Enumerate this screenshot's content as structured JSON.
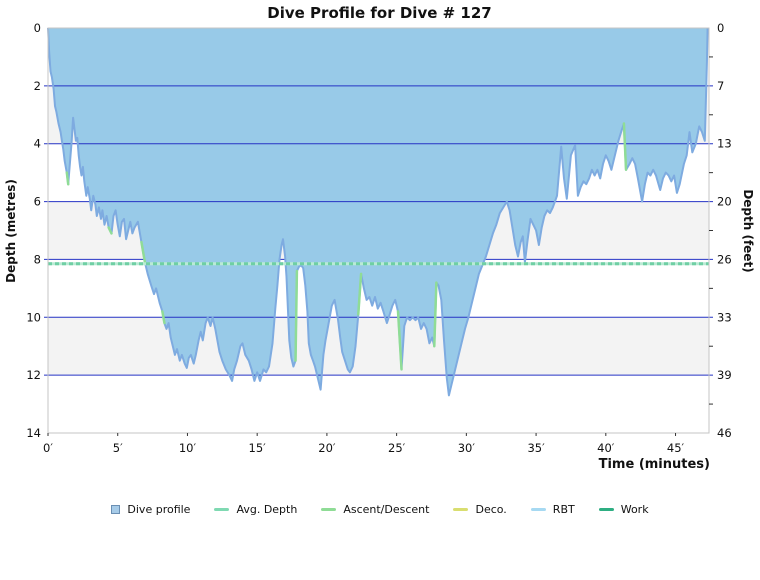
{
  "title": "Dive Profile for Dive # 127",
  "axes": {
    "y_left": {
      "label": "Depth (metres)",
      "tick_values": [
        0,
        2,
        4,
        6,
        8,
        10,
        12,
        14
      ]
    },
    "y_right": {
      "label": "Depth (feet)",
      "tick_labels": [
        "0",
        "7",
        "13",
        "20",
        "26",
        "33",
        "39",
        "46"
      ],
      "minor_tick_metres": [
        1,
        3,
        5,
        7,
        9,
        11,
        13
      ]
    },
    "x": {
      "label": "Time (minutes)",
      "tick_labels": [
        "0′",
        "5′",
        "10′",
        "15′",
        "20′",
        "25′",
        "30′",
        "35′",
        "40′",
        "45′"
      ],
      "tick_minutes": [
        0,
        5,
        10,
        15,
        20,
        25,
        30,
        35,
        40,
        45
      ]
    }
  },
  "legend": [
    {
      "label": "Dive profile",
      "type": "square",
      "color": "#A6CBE8"
    },
    {
      "label": "Avg. Depth",
      "type": "line",
      "color": "#7FD9B2"
    },
    {
      "label": "Ascent/Descent",
      "type": "line",
      "color": "#8FDC96"
    },
    {
      "label": "Deco.",
      "type": "line",
      "color": "#D9DE70"
    },
    {
      "label": "RBT",
      "type": "line",
      "color": "#A6D9F2"
    },
    {
      "label": "Work",
      "type": "line",
      "color": "#2EAE82"
    }
  ],
  "colors": {
    "profile_fill": "#98CAE8",
    "profile_stroke": "#7EABE0",
    "gridline": "#2533C4",
    "band_gray": "#F3F3F3",
    "avg_line": "#6FCFA4",
    "avg_line_light": "#B9EBD4",
    "ascent_green": "#8FDC96",
    "plot_border": "#C4C4C4",
    "tick_dark": "#333333",
    "text": "#111111"
  },
  "chart_data": {
    "type": "area",
    "title": "Dive Profile for Dive # 127",
    "xlabel": "Time (minutes)",
    "ylabel": "Depth (metres)",
    "ylabel_right": "Depth (feet)",
    "xlim": [
      0,
      47.4
    ],
    "ylim": [
      0,
      14
    ],
    "y_inverted": true,
    "grid_interval_m": 2,
    "gray_bands_m": [
      [
        2,
        4
      ],
      [
        6,
        8
      ],
      [
        10,
        12
      ]
    ],
    "avg_depth_m": 8.15,
    "max_depth_m": 12.7,
    "series": [
      {
        "name": "Dive profile",
        "points": [
          [
            0,
            0
          ],
          [
            0.08,
            0.8
          ],
          [
            0.18,
            1.5
          ],
          [
            0.28,
            1.7
          ],
          [
            0.4,
            2.1
          ],
          [
            0.5,
            2.7
          ],
          [
            0.6,
            2.9
          ],
          [
            0.75,
            3.3
          ],
          [
            0.9,
            3.6
          ],
          [
            1.0,
            3.9
          ],
          [
            1.1,
            4.2
          ],
          [
            1.2,
            4.6
          ],
          [
            1.35,
            5.0
          ],
          [
            1.45,
            5.4
          ],
          [
            1.55,
            4.8
          ],
          [
            1.7,
            3.9
          ],
          [
            1.8,
            3.1
          ],
          [
            1.9,
            3.5
          ],
          [
            2.0,
            3.9
          ],
          [
            2.1,
            3.8
          ],
          [
            2.2,
            4.4
          ],
          [
            2.3,
            4.8
          ],
          [
            2.4,
            5.1
          ],
          [
            2.5,
            4.8
          ],
          [
            2.6,
            5.3
          ],
          [
            2.75,
            5.8
          ],
          [
            2.85,
            5.5
          ],
          [
            3.0,
            5.9
          ],
          [
            3.1,
            6.3
          ],
          [
            3.25,
            5.8
          ],
          [
            3.4,
            6.1
          ],
          [
            3.5,
            6.5
          ],
          [
            3.65,
            6.2
          ],
          [
            3.8,
            6.6
          ],
          [
            3.9,
            6.3
          ],
          [
            4.05,
            6.8
          ],
          [
            4.2,
            6.5
          ],
          [
            4.35,
            6.9
          ],
          [
            4.55,
            7.1
          ],
          [
            4.7,
            6.5
          ],
          [
            4.85,
            6.3
          ],
          [
            5.0,
            6.8
          ],
          [
            5.15,
            7.2
          ],
          [
            5.3,
            6.7
          ],
          [
            5.45,
            6.6
          ],
          [
            5.6,
            7.3
          ],
          [
            5.75,
            7.0
          ],
          [
            5.9,
            6.7
          ],
          [
            6.05,
            7.1
          ],
          [
            6.2,
            6.9
          ],
          [
            6.45,
            6.7
          ],
          [
            6.7,
            7.4
          ],
          [
            6.95,
            8.1
          ],
          [
            7.15,
            8.5
          ],
          [
            7.4,
            8.9
          ],
          [
            7.6,
            9.2
          ],
          [
            7.75,
            9.0
          ],
          [
            8.0,
            9.5
          ],
          [
            8.2,
            9.8
          ],
          [
            8.35,
            10.2
          ],
          [
            8.5,
            10.4
          ],
          [
            8.65,
            10.2
          ],
          [
            8.8,
            10.7
          ],
          [
            8.95,
            11.0
          ],
          [
            9.1,
            11.3
          ],
          [
            9.25,
            11.1
          ],
          [
            9.45,
            11.5
          ],
          [
            9.6,
            11.3
          ],
          [
            9.8,
            11.6
          ],
          [
            9.95,
            11.75
          ],
          [
            10.1,
            11.4
          ],
          [
            10.25,
            11.3
          ],
          [
            10.45,
            11.6
          ],
          [
            10.6,
            11.3
          ],
          [
            10.8,
            10.8
          ],
          [
            10.95,
            10.5
          ],
          [
            11.1,
            10.8
          ],
          [
            11.3,
            10.2
          ],
          [
            11.45,
            10.0
          ],
          [
            11.65,
            10.3
          ],
          [
            11.8,
            10.0
          ],
          [
            12.0,
            10.4
          ],
          [
            12.3,
            11.2
          ],
          [
            12.5,
            11.5
          ],
          [
            12.75,
            11.8
          ],
          [
            13.0,
            12.0
          ],
          [
            13.2,
            12.2
          ],
          [
            13.35,
            11.8
          ],
          [
            13.55,
            11.5
          ],
          [
            13.8,
            11.0
          ],
          [
            13.95,
            10.9
          ],
          [
            14.15,
            11.3
          ],
          [
            14.4,
            11.5
          ],
          [
            14.6,
            11.8
          ],
          [
            14.8,
            12.2
          ],
          [
            15.0,
            11.9
          ],
          [
            15.2,
            12.2
          ],
          [
            15.45,
            11.8
          ],
          [
            15.65,
            11.9
          ],
          [
            15.85,
            11.7
          ],
          [
            16.1,
            10.9
          ],
          [
            16.3,
            9.7
          ],
          [
            16.45,
            8.9
          ],
          [
            16.6,
            8.0
          ],
          [
            16.75,
            7.5
          ],
          [
            16.85,
            7.3
          ],
          [
            17.0,
            7.9
          ],
          [
            17.1,
            8.6
          ],
          [
            17.2,
            9.7
          ],
          [
            17.3,
            10.8
          ],
          [
            17.45,
            11.4
          ],
          [
            17.6,
            11.7
          ],
          [
            17.75,
            11.5
          ],
          [
            17.85,
            8.4
          ],
          [
            18.0,
            8.25
          ],
          [
            18.15,
            8.2
          ],
          [
            18.3,
            8.3
          ],
          [
            18.45,
            8.9
          ],
          [
            18.6,
            9.8
          ],
          [
            18.7,
            10.9
          ],
          [
            18.85,
            11.3
          ],
          [
            19.0,
            11.5
          ],
          [
            19.15,
            11.7
          ],
          [
            19.3,
            12.0
          ],
          [
            19.55,
            12.5
          ],
          [
            19.75,
            11.3
          ],
          [
            19.9,
            10.8
          ],
          [
            20.05,
            10.4
          ],
          [
            20.2,
            10.0
          ],
          [
            20.35,
            9.6
          ],
          [
            20.55,
            9.4
          ],
          [
            20.8,
            10.1
          ],
          [
            20.95,
            10.7
          ],
          [
            21.1,
            11.2
          ],
          [
            21.3,
            11.5
          ],
          [
            21.5,
            11.8
          ],
          [
            21.65,
            11.9
          ],
          [
            21.85,
            11.7
          ],
          [
            22.05,
            11.0
          ],
          [
            22.25,
            9.9
          ],
          [
            22.45,
            8.5
          ],
          [
            22.65,
            9.0
          ],
          [
            22.85,
            9.4
          ],
          [
            23.05,
            9.3
          ],
          [
            23.25,
            9.6
          ],
          [
            23.45,
            9.3
          ],
          [
            23.65,
            9.7
          ],
          [
            23.85,
            9.5
          ],
          [
            24.05,
            9.8
          ],
          [
            24.3,
            10.2
          ],
          [
            24.5,
            9.9
          ],
          [
            24.7,
            9.6
          ],
          [
            24.9,
            9.4
          ],
          [
            25.1,
            9.8
          ],
          [
            25.35,
            11.8
          ],
          [
            25.55,
            10.3
          ],
          [
            25.75,
            10.0
          ],
          [
            25.95,
            10.1
          ],
          [
            26.15,
            10.0
          ],
          [
            26.35,
            10.1
          ],
          [
            26.55,
            10.0
          ],
          [
            26.75,
            10.4
          ],
          [
            26.95,
            10.2
          ],
          [
            27.15,
            10.4
          ],
          [
            27.35,
            10.9
          ],
          [
            27.55,
            10.7
          ],
          [
            27.7,
            11.0
          ],
          [
            27.85,
            8.8
          ],
          [
            28.0,
            8.9
          ],
          [
            28.2,
            9.4
          ],
          [
            28.4,
            10.8
          ],
          [
            28.6,
            12.1
          ],
          [
            28.75,
            12.7
          ],
          [
            28.95,
            12.3
          ],
          [
            29.15,
            11.9
          ],
          [
            29.4,
            11.4
          ],
          [
            29.65,
            10.9
          ],
          [
            29.9,
            10.4
          ],
          [
            30.15,
            10.0
          ],
          [
            30.4,
            9.5
          ],
          [
            30.65,
            9.0
          ],
          [
            30.9,
            8.5
          ],
          [
            31.15,
            8.2
          ],
          [
            31.4,
            7.9
          ],
          [
            31.65,
            7.5
          ],
          [
            31.9,
            7.1
          ],
          [
            32.15,
            6.8
          ],
          [
            32.4,
            6.4
          ],
          [
            32.65,
            6.2
          ],
          [
            32.9,
            6.0
          ],
          [
            33.1,
            6.3
          ],
          [
            33.3,
            6.9
          ],
          [
            33.5,
            7.5
          ],
          [
            33.7,
            7.9
          ],
          [
            33.9,
            7.4
          ],
          [
            34.05,
            7.2
          ],
          [
            34.2,
            8.1
          ],
          [
            34.4,
            7.3
          ],
          [
            34.6,
            6.6
          ],
          [
            34.8,
            6.8
          ],
          [
            35.0,
            7.0
          ],
          [
            35.2,
            7.5
          ],
          [
            35.4,
            6.9
          ],
          [
            35.6,
            6.5
          ],
          [
            35.8,
            6.3
          ],
          [
            36.0,
            6.4
          ],
          [
            36.2,
            6.2
          ],
          [
            36.5,
            5.8
          ],
          [
            36.8,
            4.1
          ],
          [
            37.0,
            5.2
          ],
          [
            37.2,
            5.9
          ],
          [
            37.5,
            4.4
          ],
          [
            37.8,
            4.05
          ],
          [
            38.0,
            5.8
          ],
          [
            38.2,
            5.5
          ],
          [
            38.4,
            5.3
          ],
          [
            38.6,
            5.4
          ],
          [
            38.8,
            5.2
          ],
          [
            39.0,
            4.9
          ],
          [
            39.2,
            5.1
          ],
          [
            39.4,
            4.9
          ],
          [
            39.6,
            5.2
          ],
          [
            39.8,
            4.7
          ],
          [
            40.0,
            4.4
          ],
          [
            40.2,
            4.6
          ],
          [
            40.4,
            4.9
          ],
          [
            40.6,
            4.5
          ],
          [
            40.9,
            3.9
          ],
          [
            41.1,
            3.6
          ],
          [
            41.3,
            3.3
          ],
          [
            41.45,
            4.9
          ],
          [
            41.7,
            4.7
          ],
          [
            41.9,
            4.5
          ],
          [
            42.1,
            4.7
          ],
          [
            42.3,
            5.2
          ],
          [
            42.6,
            6.0
          ],
          [
            42.8,
            5.4
          ],
          [
            43.0,
            5.0
          ],
          [
            43.2,
            5.1
          ],
          [
            43.4,
            4.9
          ],
          [
            43.6,
            5.1
          ],
          [
            43.9,
            5.6
          ],
          [
            44.1,
            5.2
          ],
          [
            44.3,
            5.0
          ],
          [
            44.5,
            5.1
          ],
          [
            44.7,
            5.3
          ],
          [
            44.9,
            5.1
          ],
          [
            45.1,
            5.7
          ],
          [
            45.3,
            5.4
          ],
          [
            45.6,
            4.7
          ],
          [
            45.8,
            4.4
          ],
          [
            46.0,
            3.6
          ],
          [
            46.2,
            4.3
          ],
          [
            46.45,
            4.0
          ],
          [
            46.7,
            3.4
          ],
          [
            46.9,
            3.6
          ],
          [
            47.1,
            3.9
          ],
          [
            47.15,
            3.0
          ],
          [
            47.25,
            1.2
          ],
          [
            47.3,
            0
          ]
        ]
      }
    ],
    "ascent_descent_segments": [
      [
        1.35,
        5.0,
        1.45,
        5.4
      ],
      [
        4.35,
        6.9,
        4.55,
        7.1
      ],
      [
        6.7,
        7.4,
        6.95,
        8.1
      ],
      [
        8.2,
        9.8,
        8.35,
        10.2
      ],
      [
        17.75,
        11.5,
        17.85,
        8.4
      ],
      [
        22.25,
        9.9,
        22.45,
        8.5
      ],
      [
        25.1,
        9.8,
        25.35,
        11.8
      ],
      [
        27.7,
        11.0,
        27.85,
        8.8
      ],
      [
        41.3,
        3.3,
        41.45,
        4.9
      ]
    ]
  }
}
